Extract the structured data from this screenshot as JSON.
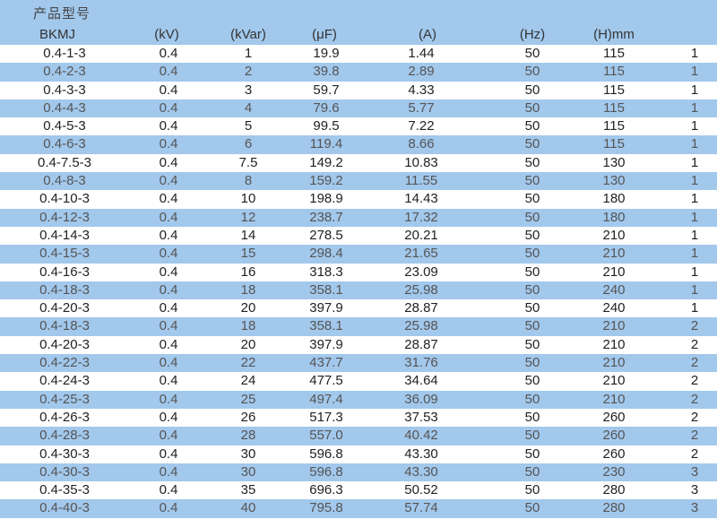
{
  "table": {
    "title": "产品型号",
    "headers": [
      "BKMJ",
      "(kV)",
      "(kVar)",
      "(μF)",
      "(A)",
      "(Hz)",
      "(H)mm",
      ""
    ],
    "rows": [
      [
        "0.4-1-3",
        "0.4",
        "1",
        "19.9",
        "1.44",
        "50",
        "115",
        "1"
      ],
      [
        "0.4-2-3",
        "0.4",
        "2",
        "39.8",
        "2.89",
        "50",
        "115",
        "1"
      ],
      [
        "0.4-3-3",
        "0.4",
        "3",
        "59.7",
        "4.33",
        "50",
        "115",
        "1"
      ],
      [
        "0.4-4-3",
        "0.4",
        "4",
        "79.6",
        "5.77",
        "50",
        "115",
        "1"
      ],
      [
        "0.4-5-3",
        "0.4",
        "5",
        "99.5",
        "7.22",
        "50",
        "115",
        "1"
      ],
      [
        "0.4-6-3",
        "0.4",
        "6",
        "119.4",
        "8.66",
        "50",
        "115",
        "1"
      ],
      [
        "0.4-7.5-3",
        "0.4",
        "7.5",
        "149.2",
        "10.83",
        "50",
        "130",
        "1"
      ],
      [
        "0.4-8-3",
        "0.4",
        "8",
        "159.2",
        "11.55",
        "50",
        "130",
        "1"
      ],
      [
        "0.4-10-3",
        "0.4",
        "10",
        "198.9",
        "14.43",
        "50",
        "180",
        "1"
      ],
      [
        "0.4-12-3",
        "0.4",
        "12",
        "238.7",
        "17.32",
        "50",
        "180",
        "1"
      ],
      [
        "0.4-14-3",
        "0.4",
        "14",
        "278.5",
        "20.21",
        "50",
        "210",
        "1"
      ],
      [
        "0.4-15-3",
        "0.4",
        "15",
        "298.4",
        "21.65",
        "50",
        "210",
        "1"
      ],
      [
        "0.4-16-3",
        "0.4",
        "16",
        "318.3",
        "23.09",
        "50",
        "210",
        "1"
      ],
      [
        "0.4-18-3",
        "0.4",
        "18",
        "358.1",
        "25.98",
        "50",
        "240",
        "1"
      ],
      [
        "0.4-20-3",
        "0.4",
        "20",
        "397.9",
        "28.87",
        "50",
        "240",
        "1"
      ],
      [
        "0.4-18-3",
        "0.4",
        "18",
        "358.1",
        "25.98",
        "50",
        "210",
        "2"
      ],
      [
        "0.4-20-3",
        "0.4",
        "20",
        "397.9",
        "28.87",
        "50",
        "210",
        "2"
      ],
      [
        "0.4-22-3",
        "0.4",
        "22",
        "437.7",
        "31.76",
        "50",
        "210",
        "2"
      ],
      [
        "0.4-24-3",
        "0.4",
        "24",
        "477.5",
        "34.64",
        "50",
        "210",
        "2"
      ],
      [
        "0.4-25-3",
        "0.4",
        "25",
        "497.4",
        "36.09",
        "50",
        "210",
        "2"
      ],
      [
        "0.4-26-3",
        "0.4",
        "26",
        "517.3",
        "37.53",
        "50",
        "260",
        "2"
      ],
      [
        "0.4-28-3",
        "0.4",
        "28",
        "557.0",
        "40.42",
        "50",
        "260",
        "2"
      ],
      [
        "0.4-30-3",
        "0.4",
        "30",
        "596.8",
        "43.30",
        "50",
        "260",
        "2"
      ],
      [
        "0.4-30-3",
        "0.4",
        "30",
        "596.8",
        "43.30",
        "50",
        "230",
        "3"
      ],
      [
        "0.4-35-3",
        "0.4",
        "35",
        "696.3",
        "50.52",
        "50",
        "280",
        "3"
      ],
      [
        "0.4-40-3",
        "0.4",
        "40",
        "795.8",
        "57.74",
        "50",
        "280",
        "3"
      ]
    ]
  }
}
